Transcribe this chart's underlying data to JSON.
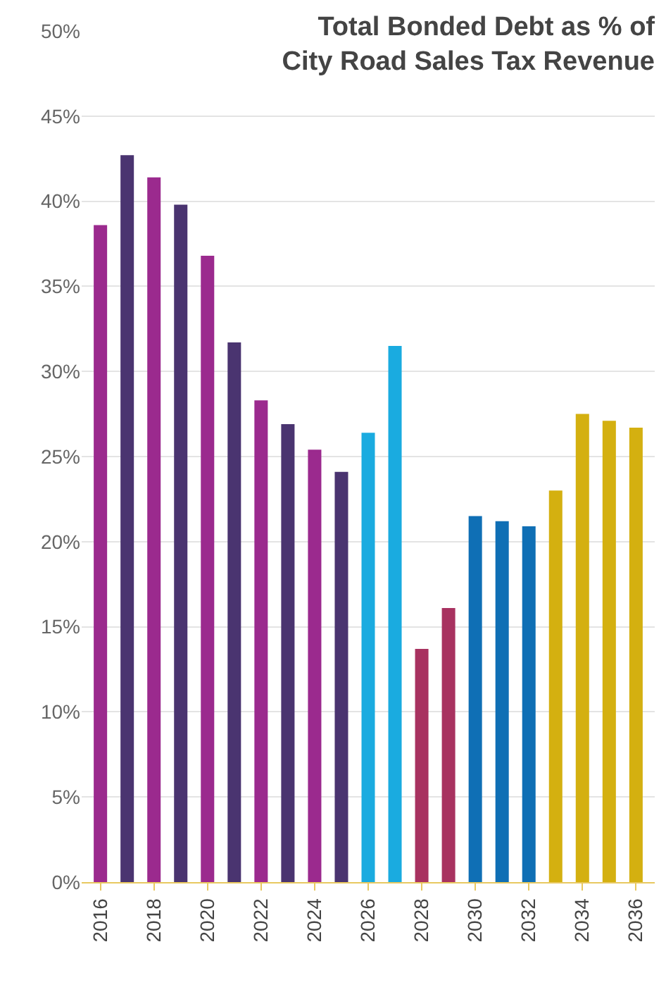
{
  "chart_data": {
    "type": "bar",
    "title": "Total Bonded Debt as % of\nCity Road Sales Tax Revenue",
    "categories": [
      "2016",
      null,
      "2018",
      null,
      "2020",
      null,
      "2022",
      null,
      "2024",
      null,
      "2026",
      null,
      "2028",
      null,
      "2030",
      null,
      "2032",
      null,
      "2034",
      null,
      "2036"
    ],
    "values": [
      38.6,
      42.7,
      41.4,
      39.8,
      36.8,
      31.7,
      28.3,
      26.9,
      25.4,
      24.1,
      26.4,
      31.5,
      13.7,
      16.1,
      21.5,
      21.2,
      20.9,
      23.0,
      27.5,
      27.1,
      26.7
    ],
    "colors": [
      "#9b2a8e",
      "#4a3470",
      "#9b2a8e",
      "#4a3470",
      "#9b2a8e",
      "#4a3470",
      "#9b2a8e",
      "#4a3470",
      "#9b2a8e",
      "#4a3470",
      "#1aabe0",
      "#1aabe0",
      "#a83260",
      "#a83260",
      "#0f6fb5",
      "#0f6fb5",
      "#0f6fb5",
      "#d4b010",
      "#d4b010",
      "#d4b010",
      "#d4b010"
    ],
    "ylim": [
      0,
      50
    ],
    "yticks": [
      {
        "value": 0,
        "label": "0%"
      },
      {
        "value": 5,
        "label": "5%"
      },
      {
        "value": 10,
        "label": "10%"
      },
      {
        "value": 15,
        "label": "15%"
      },
      {
        "value": 20,
        "label": "20%"
      },
      {
        "value": 25,
        "label": "25%"
      },
      {
        "value": 30,
        "label": "30%"
      },
      {
        "value": 35,
        "label": "35%"
      },
      {
        "value": 40,
        "label": "40%"
      },
      {
        "value": 45,
        "label": "45%"
      },
      {
        "value": 50,
        "label": "50%"
      }
    ],
    "grid": "y"
  }
}
